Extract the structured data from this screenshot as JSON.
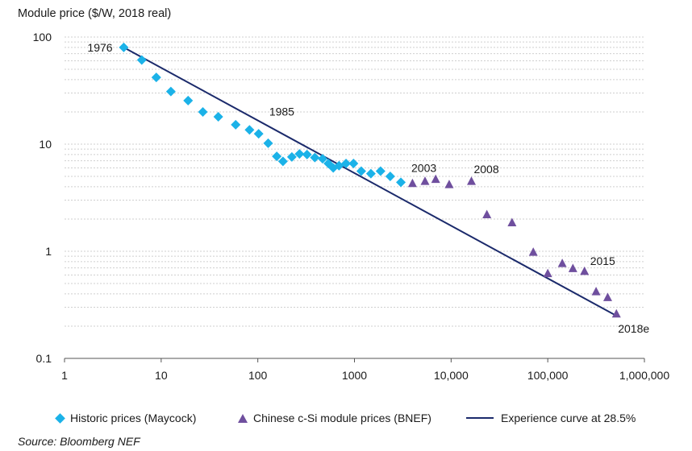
{
  "chart_data": {
    "type": "scatter",
    "ylabel": "Module price ($/W, 2018 real)",
    "x_scale": "log",
    "y_scale": "log",
    "xlim": [
      1,
      1000000
    ],
    "ylim": [
      0.1,
      100
    ],
    "x_ticks": [
      {
        "value": 1,
        "label": "1"
      },
      {
        "value": 10,
        "label": "10"
      },
      {
        "value": 100,
        "label": "100"
      },
      {
        "value": 1000,
        "label": "1000"
      },
      {
        "value": 10000,
        "label": "10,000"
      },
      {
        "value": 100000,
        "label": "100,000"
      },
      {
        "value": 1000000,
        "label": "1,000,000"
      }
    ],
    "y_ticks": [
      {
        "value": 100,
        "label": "100"
      },
      {
        "value": 10,
        "label": "10"
      },
      {
        "value": 1,
        "label": "1"
      },
      {
        "value": 0.1,
        "label": "0.1"
      }
    ],
    "grid": true,
    "legend_position": "bottom",
    "series": [
      {
        "name": "Historic prices (Maycock)",
        "marker": "diamond",
        "color": "#1bb2e8",
        "points": [
          [
            4.1,
            80
          ],
          [
            6.3,
            61
          ],
          [
            8.9,
            42
          ],
          [
            12.6,
            31
          ],
          [
            19,
            25.5
          ],
          [
            27,
            20
          ],
          [
            39,
            18
          ],
          [
            59,
            15.2
          ],
          [
            82,
            13.6
          ],
          [
            102,
            12.5
          ],
          [
            128,
            10.2
          ],
          [
            157,
            7.7
          ],
          [
            182,
            6.9
          ],
          [
            225,
            7.6
          ],
          [
            270,
            8.1
          ],
          [
            323,
            8
          ],
          [
            389,
            7.5
          ],
          [
            468,
            7.3
          ],
          [
            537,
            6.6
          ],
          [
            603,
            6
          ],
          [
            692,
            6.3
          ],
          [
            818,
            6.6
          ],
          [
            977,
            6.6
          ],
          [
            1175,
            5.6
          ],
          [
            1479,
            5.3
          ],
          [
            1862,
            5.6
          ],
          [
            2344,
            5
          ],
          [
            3020,
            4.4
          ]
        ]
      },
      {
        "name": "Chinese c-Si module prices (BNEF)",
        "marker": "triangle",
        "color": "#6f4f9e",
        "points": [
          [
            3981,
            4.3
          ],
          [
            5370,
            4.5
          ],
          [
            6918,
            4.7
          ],
          [
            9550,
            4.2
          ],
          [
            16218,
            4.5
          ],
          [
            23442,
            2.2
          ],
          [
            42658,
            1.85
          ],
          [
            70795,
            0.98
          ],
          [
            100000,
            0.62
          ],
          [
            141254,
            0.77
          ],
          [
            181970,
            0.69
          ],
          [
            239883,
            0.65
          ],
          [
            316228,
            0.42
          ],
          [
            416869,
            0.37
          ],
          [
            512861,
            0.26
          ]
        ]
      },
      {
        "name": "Experience curve at 28.5%",
        "marker": "line",
        "color": "#1b2a6b",
        "points": [
          [
            4.1,
            80
          ],
          [
            512861,
            0.25
          ]
        ]
      }
    ],
    "annotations": [
      {
        "text": "1976",
        "x": 4.1,
        "y": 80
      },
      {
        "text": "1985",
        "x": 182,
        "y": 6.9
      },
      {
        "text": "2003",
        "x": 3020,
        "y": 4.4
      },
      {
        "text": "2008",
        "x": 16218,
        "y": 4.5
      },
      {
        "text": "2015",
        "x": 239883,
        "y": 0.65
      },
      {
        "text": "2018e",
        "x": 512861,
        "y": 0.26
      }
    ],
    "source": "Source: Bloomberg NEF"
  }
}
